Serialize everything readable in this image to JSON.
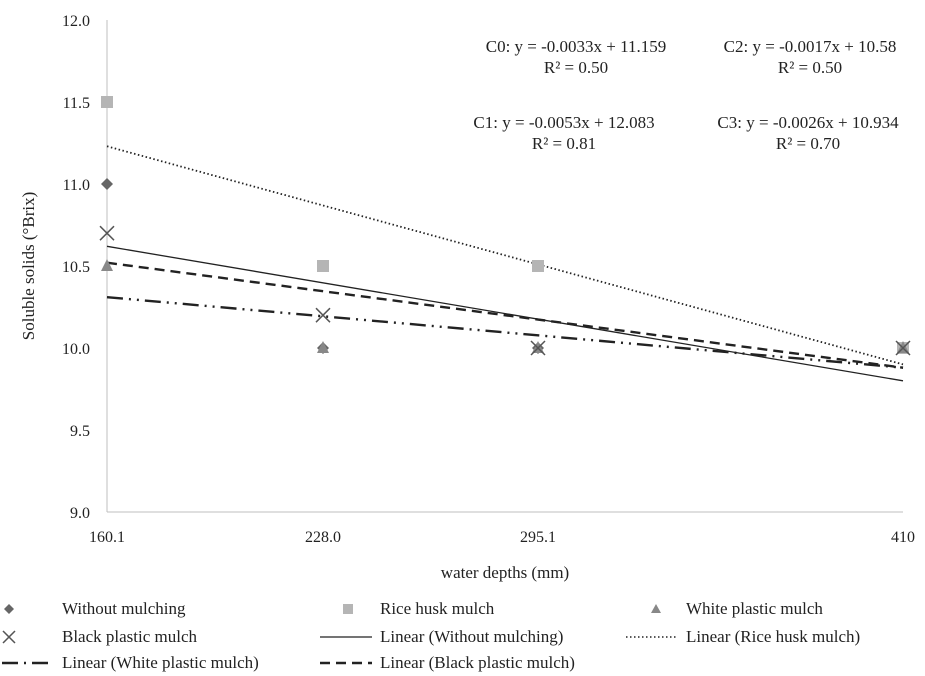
{
  "chart_data": {
    "type": "scatter",
    "title": "",
    "xlabel": "water depths (mm)",
    "ylabel": "Soluble solids (°Brix)",
    "x_ticks": [
      "160.1",
      "228.0",
      "295.1",
      "410"
    ],
    "x_values": [
      160.1,
      228.0,
      295.1,
      410
    ],
    "xlim": [
      160.1,
      410
    ],
    "ylim": [
      9.0,
      12.0
    ],
    "y_ticks": [
      "9.0",
      "9.5",
      "10.0",
      "10.5",
      "11.0",
      "11.5",
      "12.0"
    ],
    "grid": false,
    "legend_position": "bottom",
    "series": [
      {
        "name": "Without mulching",
        "marker": "diamond",
        "color": "#666666",
        "values": [
          11.0,
          10.0,
          10.0,
          10.0
        ]
      },
      {
        "name": "Rice husk mulch",
        "marker": "square",
        "color": "#b5b5b5",
        "values": [
          11.5,
          10.5,
          10.5,
          10.0
        ]
      },
      {
        "name": "White plastic mulch",
        "marker": "triangle",
        "color": "#888888",
        "values": [
          10.5,
          10.0,
          10.0,
          10.0
        ]
      },
      {
        "name": "Black plastic mulch",
        "marker": "x",
        "color": "#555555",
        "values": [
          10.7,
          10.2,
          10.0,
          10.0
        ]
      }
    ],
    "trendlines": [
      {
        "name": "Linear (Without mulching)",
        "style": "solid",
        "y_start": 10.62,
        "y_end": 9.8
      },
      {
        "name": "Linear (Rice husk mulch)",
        "style": "dotted",
        "y_start": 11.23,
        "y_end": 9.9
      },
      {
        "name": "Linear (White plastic mulch)",
        "style": "dashdotdot",
        "y_start": 10.31,
        "y_end": 9.88
      },
      {
        "name": "Linear (Black plastic mulch)",
        "style": "dashed",
        "y_start": 10.52,
        "y_end": 9.88
      }
    ],
    "annotations": [
      {
        "line1": "C0: y = -0.0033x + 11.159",
        "line2": "R² = 0.50"
      },
      {
        "line1": "C2: y = -0.0017x + 10.58",
        "line2": "R² = 0.50"
      },
      {
        "line1": "C1: y = -0.0053x + 12.083",
        "line2": "R² = 0.81"
      },
      {
        "line1": "C3: y = -0.0026x + 10.934",
        "line2": "R² = 0.70"
      }
    ]
  }
}
